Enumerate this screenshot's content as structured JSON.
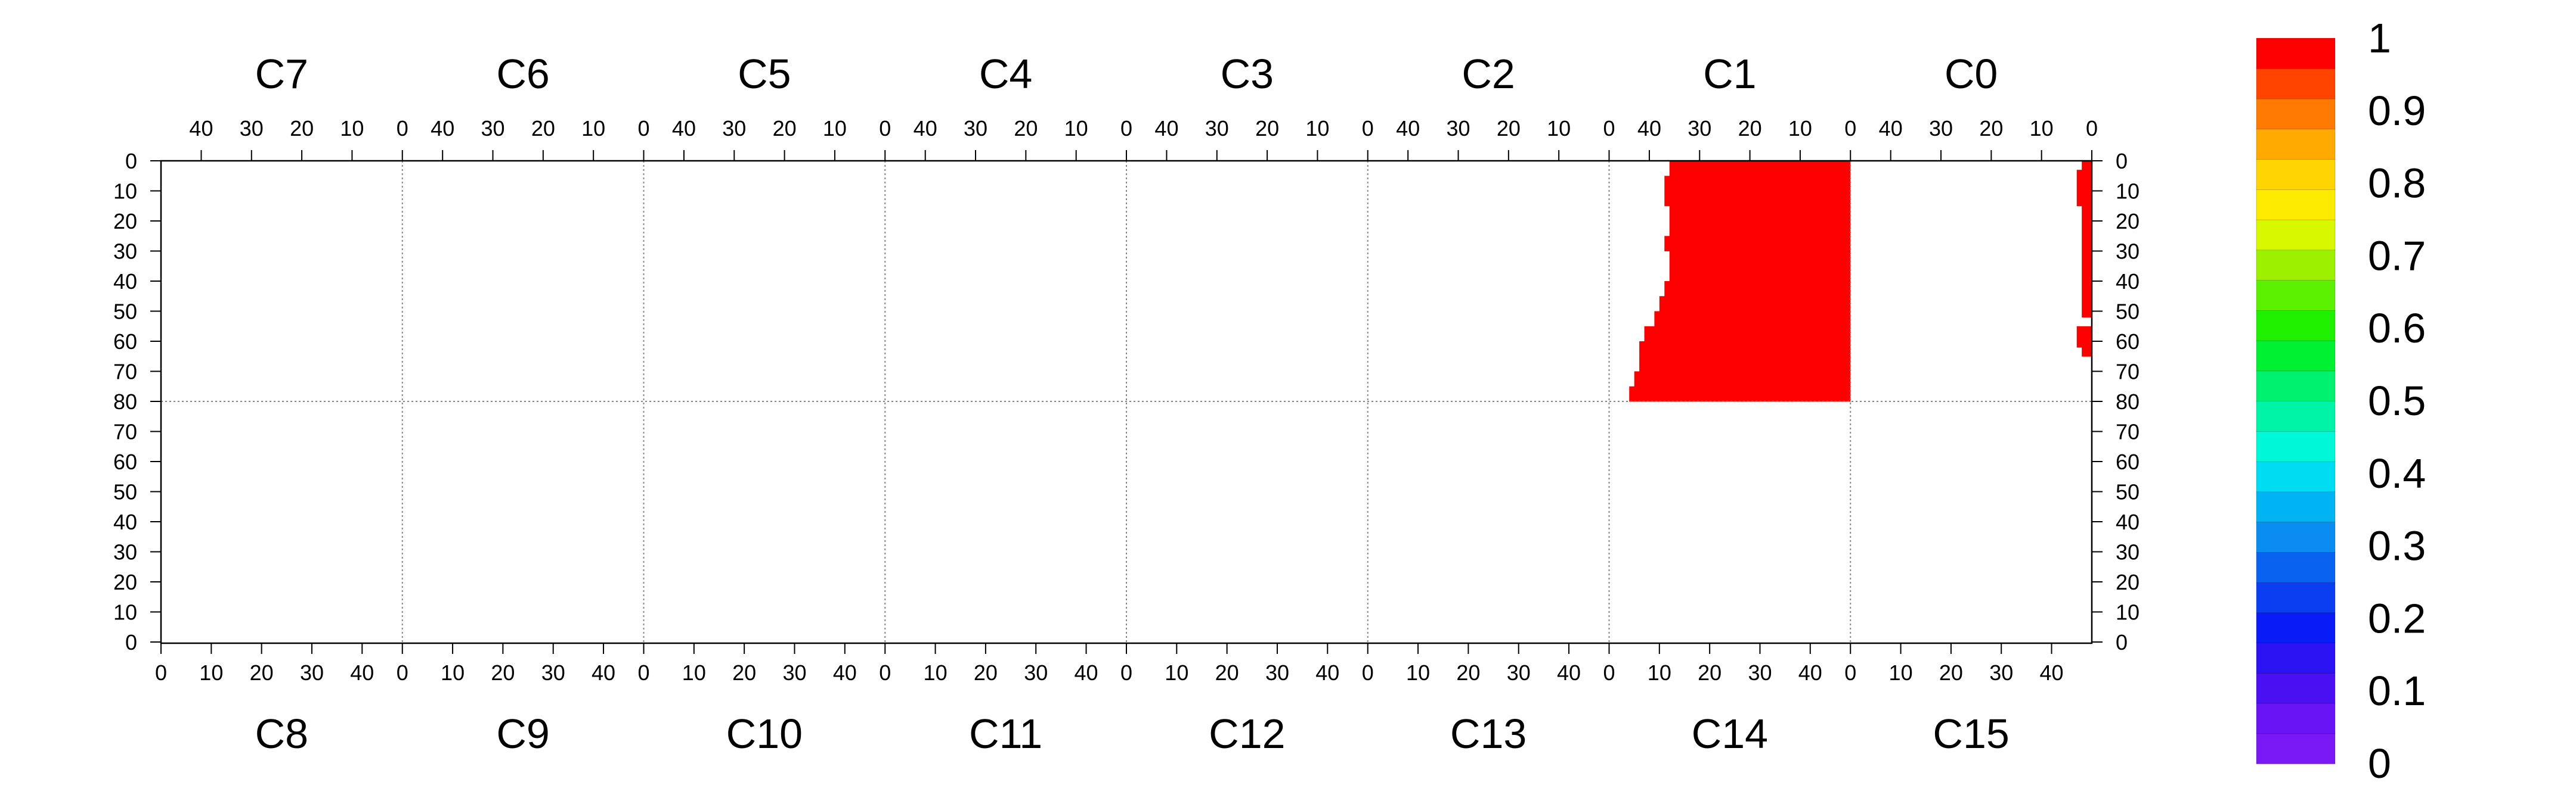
{
  "chart_data": {
    "type": "heatmap",
    "title": "",
    "xlabel": "",
    "ylabel": "",
    "top_panels": [
      "C7",
      "C6",
      "C5",
      "C4",
      "C3",
      "C2",
      "C1",
      "C0"
    ],
    "bottom_panels": [
      "C8",
      "C9",
      "C10",
      "C11",
      "C12",
      "C13",
      "C14",
      "C15"
    ],
    "top_axis_ticks": [
      "40",
      "30",
      "20",
      "10",
      "0"
    ],
    "bottom_axis_ticks": [
      "0",
      "10",
      "20",
      "30",
      "40"
    ],
    "y_upper_ticks": [
      "0",
      "10",
      "20",
      "30",
      "40",
      "50",
      "60",
      "70",
      "80"
    ],
    "y_lower_ticks": [
      "70",
      "60",
      "50",
      "40",
      "30",
      "20",
      "10",
      "0"
    ],
    "x_range_per_panel": [
      0,
      48
    ],
    "y_range": [
      0,
      80
    ],
    "grid": "dotted at panel boundaries",
    "colorbar": {
      "min": 0,
      "max": 1,
      "step": 0.05,
      "labels": [
        "1",
        "0.9",
        "0.8",
        "0.7",
        "0.6",
        "0.5",
        "0.4",
        "0.3",
        "0.2",
        "0.1",
        "0"
      ],
      "colors": [
        "#7a18f5",
        "#6814f5",
        "#4a10f2",
        "#2a12f2",
        "#0a1cf5",
        "#0a3ef0",
        "#0a62f0",
        "#0a8cf0",
        "#00b4f4",
        "#00dcf2",
        "#00f8d8",
        "#00f4a8",
        "#00f070",
        "#00f032",
        "#1ef000",
        "#5af000",
        "#9cf000",
        "#d8f800",
        "#fcea00",
        "#ffd400",
        "#ffaa00",
        "#ff7a00",
        "#ff4400",
        "#ff0000"
      ]
    },
    "series": [
      {
        "region": "C1",
        "value": 1.0,
        "color": "#ff0000",
        "rows": [
          {
            "y0": 0,
            "y1": 5,
            "x0": 0,
            "x1": 36
          },
          {
            "y0": 5,
            "y1": 10,
            "x0": 0,
            "x1": 37
          },
          {
            "y0": 10,
            "y1": 15,
            "x0": 0,
            "x1": 37
          },
          {
            "y0": 15,
            "y1": 20,
            "x0": 0,
            "x1": 36
          },
          {
            "y0": 20,
            "y1": 25,
            "x0": 0,
            "x1": 36
          },
          {
            "y0": 25,
            "y1": 30,
            "x0": 0,
            "x1": 37
          },
          {
            "y0": 30,
            "y1": 35,
            "x0": 0,
            "x1": 36
          },
          {
            "y0": 35,
            "y1": 40,
            "x0": 0,
            "x1": 36
          },
          {
            "y0": 40,
            "y1": 45,
            "x0": 0,
            "x1": 37
          },
          {
            "y0": 45,
            "y1": 50,
            "x0": 0,
            "x1": 38
          },
          {
            "y0": 50,
            "y1": 55,
            "x0": 0,
            "x1": 39
          },
          {
            "y0": 55,
            "y1": 60,
            "x0": 0,
            "x1": 41
          },
          {
            "y0": 60,
            "y1": 65,
            "x0": 0,
            "x1": 42
          },
          {
            "y0": 65,
            "y1": 70,
            "x0": 0,
            "x1": 42
          },
          {
            "y0": 70,
            "y1": 75,
            "x0": 0,
            "x1": 43
          },
          {
            "y0": 75,
            "y1": 80,
            "x0": 0,
            "x1": 44
          }
        ]
      },
      {
        "region": "C0",
        "value": 1.0,
        "color": "#ff0000",
        "rows": [
          {
            "y0": 0,
            "y1": 3,
            "x0": 0,
            "x1": 2
          },
          {
            "y0": 3,
            "y1": 15,
            "x0": 0,
            "x1": 3
          },
          {
            "y0": 15,
            "y1": 52,
            "x0": 0,
            "x1": 2
          },
          {
            "y0": 55,
            "y1": 62,
            "x0": 0,
            "x1": 3
          },
          {
            "y0": 62,
            "y1": 65,
            "x0": 0,
            "x1": 2
          }
        ]
      }
    ]
  }
}
